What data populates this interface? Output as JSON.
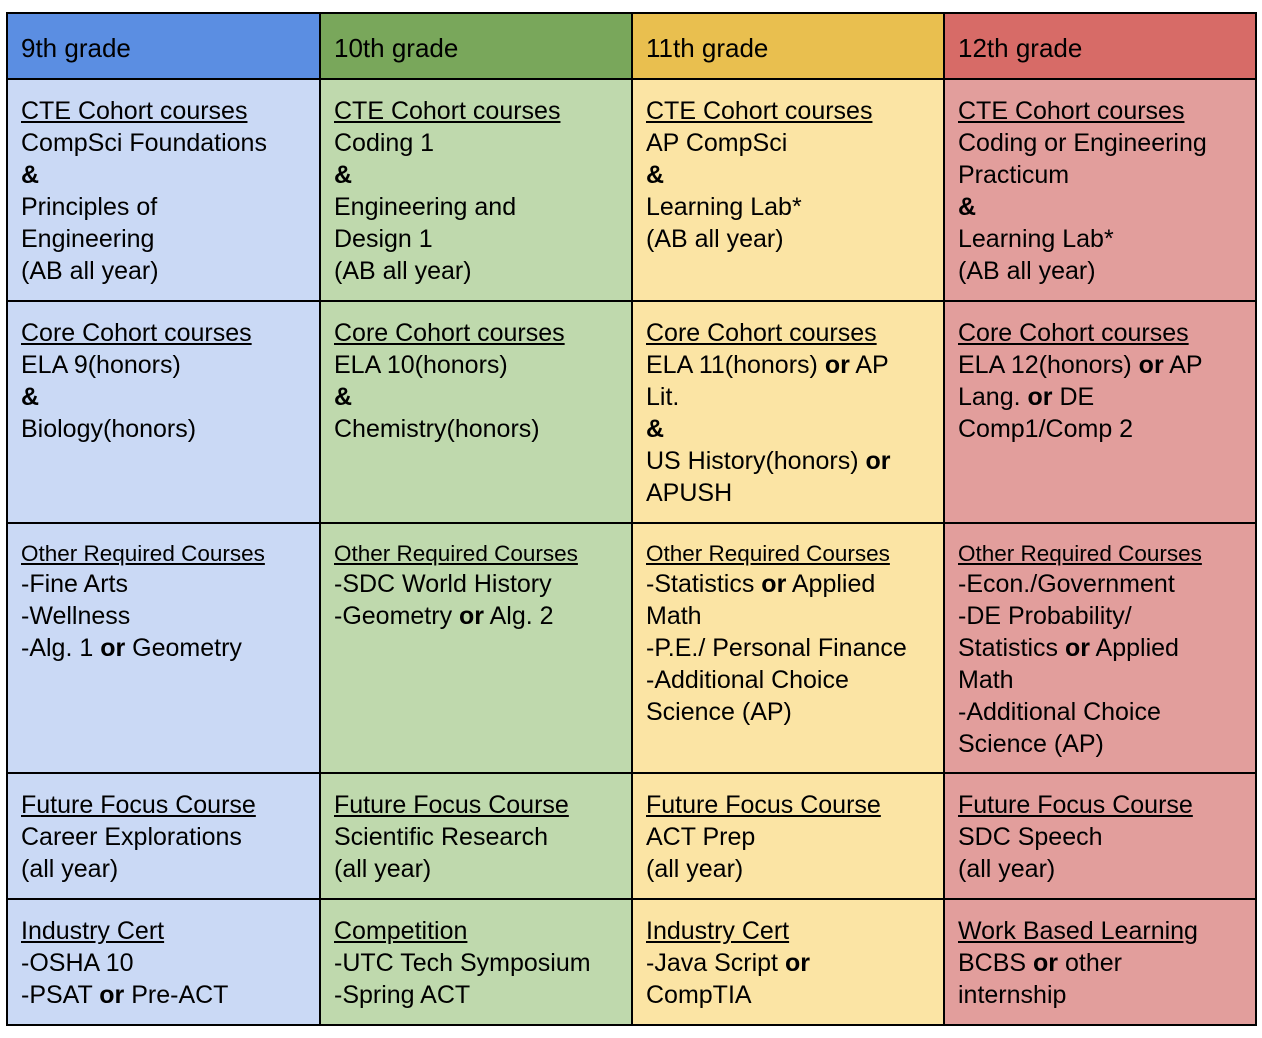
{
  "headers": [
    "9th grade",
    "10th grade",
    "11th grade",
    "12th grade"
  ],
  "colors": {
    "header": [
      "#5b8ee2",
      "#79a75b",
      "#e9bf4f",
      "#d76b67"
    ],
    "cell": [
      "#cad9f5",
      "#bfd9ad",
      "#fbe4a4",
      "#e29e9c"
    ]
  },
  "connectors": {
    "and": "&",
    "or": "or"
  },
  "rows": [
    [
      {
        "heading": "CTE Cohort courses",
        "lines": [
          "CompSci Foundations"
        ],
        "after_amp": [
          "Principles of",
          "Engineering",
          "(AB all year)"
        ]
      },
      {
        "heading": "CTE Cohort courses",
        "lines": [
          "Coding 1"
        ],
        "after_amp": [
          "Engineering and",
          "Design 1",
          "(AB all year)"
        ]
      },
      {
        "heading": "CTE Cohort courses",
        "lines": [
          "AP CompSci"
        ],
        "after_amp": [
          "Learning Lab*",
          "(AB all year)"
        ]
      },
      {
        "heading": "CTE Cohort courses",
        "lines": [
          "Coding or Engineering",
          "Practicum"
        ],
        "after_amp": [
          "Learning Lab*",
          "(AB all year)"
        ]
      }
    ],
    [
      {
        "heading": "Core Cohort courses",
        "lines": [
          "ELA 9(honors)"
        ],
        "after_amp": [
          "Biology(honors)"
        ]
      },
      {
        "heading": "Core Cohort courses",
        "lines": [
          "ELA 10(honors)"
        ],
        "after_amp": [
          "Chemistry(honors)"
        ]
      },
      {
        "heading": "Core Cohort courses",
        "l1a": "ELA 11(honors) ",
        "l1b": " AP",
        "l2": "Lit.",
        "l3a": "US History(honors) ",
        "l4": "APUSH"
      },
      {
        "heading": "Core Cohort courses",
        "l1a": "ELA 12(honors) ",
        "l1b": " AP",
        "l2a": "Lang. ",
        "l2b": " DE",
        "l3": "Comp1/Comp 2"
      }
    ],
    [
      {
        "heading": "Other Required Courses",
        "l1": "-Fine Arts",
        "l2": "-Wellness",
        "l3a": "-Alg. 1 ",
        "l3b": " Geometry"
      },
      {
        "heading": "Other Required Courses",
        "l1": "-SDC World History",
        "l2a": "-Geometry ",
        "l2b": " Alg. 2"
      },
      {
        "heading": "Other Required Courses",
        "l1a": "-Statistics ",
        "l1b": " Applied",
        "l2": "Math",
        "l3": "-P.E./ Personal Finance",
        "l4": "-Additional Choice",
        "l5": "Science (AP)"
      },
      {
        "heading": "Other Required Courses",
        "l1": "-Econ./Government",
        "l2": "-DE Probability/",
        "l3a": "Statistics ",
        "l3b": " Applied",
        "l4": "Math",
        "l5": "-Additional Choice",
        "l6": "Science (AP)"
      }
    ],
    [
      {
        "heading": "Future Focus Course",
        "lines": [
          "Career Explorations",
          "(all year)"
        ]
      },
      {
        "heading": "Future Focus Course",
        "lines": [
          "Scientific Research",
          "(all year)"
        ]
      },
      {
        "heading": "Future Focus Course",
        "lines": [
          "ACT Prep",
          "(all year)"
        ]
      },
      {
        "heading": "Future Focus Course",
        "lines": [
          "SDC Speech",
          "(all year)"
        ]
      }
    ],
    [
      {
        "heading": "Industry Cert",
        "l1": "-OSHA 10",
        "l2a": "-PSAT ",
        "l2b": " Pre-ACT"
      },
      {
        "heading": "Competition",
        "l1": "-UTC Tech Symposium",
        "l2": "-Spring ACT"
      },
      {
        "heading": "Industry Cert",
        "l1a": "-Java Script ",
        "l2": "CompTIA"
      },
      {
        "heading": "Work Based Learning",
        "l1a": "BCBS ",
        "l1b": " other",
        "l2": "internship"
      }
    ]
  ]
}
